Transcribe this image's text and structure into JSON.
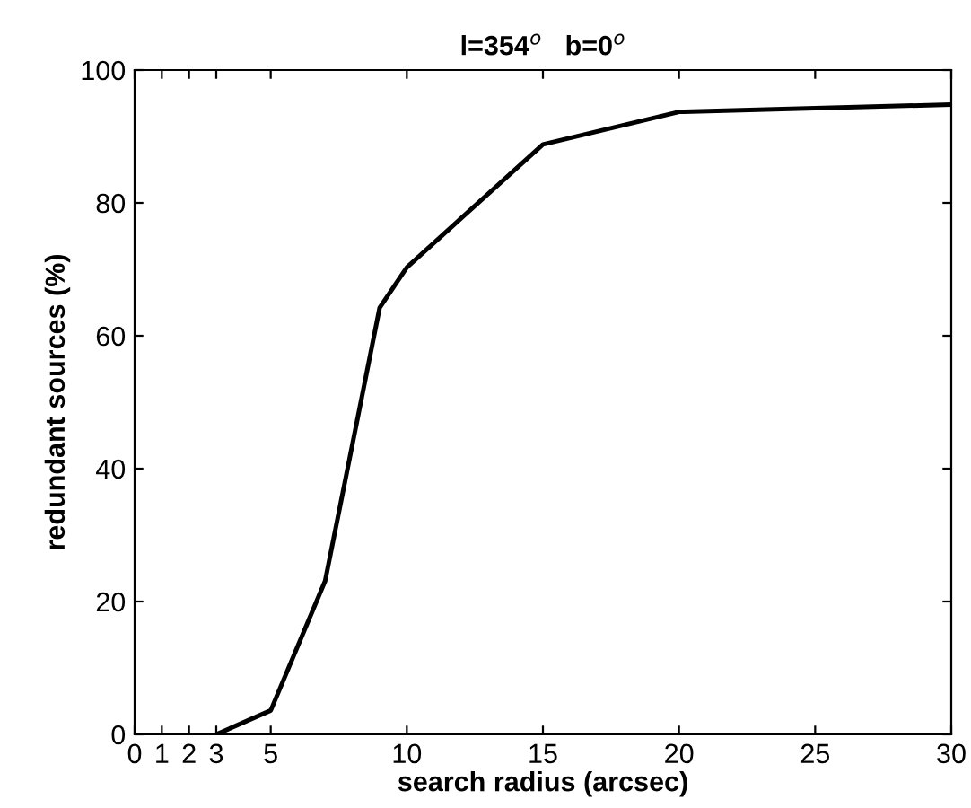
{
  "chart_data": {
    "type": "line",
    "title": "l=354$^{o}$   b=0$^{o}$",
    "xlabel": "search radius (arcsec)",
    "ylabel": "redundant sources (%)",
    "x": [
      3,
      5,
      7,
      9,
      10,
      15,
      20,
      30
    ],
    "series": [
      {
        "color": "#000000",
        "values": [
          0,
          3.6,
          23.1,
          64.2,
          70.3,
          88.8,
          93.7,
          94.8
        ]
      }
    ],
    "xlim": [
      0,
      30
    ],
    "xticks": [
      0,
      1,
      2,
      3,
      5,
      10,
      15,
      20,
      25,
      30
    ],
    "ylim": [
      0,
      100
    ],
    "yticks": [
      0,
      20,
      40,
      60,
      80,
      100
    ],
    "grid": false,
    "legend": false,
    "marker": "none",
    "line_style": "solid"
  }
}
